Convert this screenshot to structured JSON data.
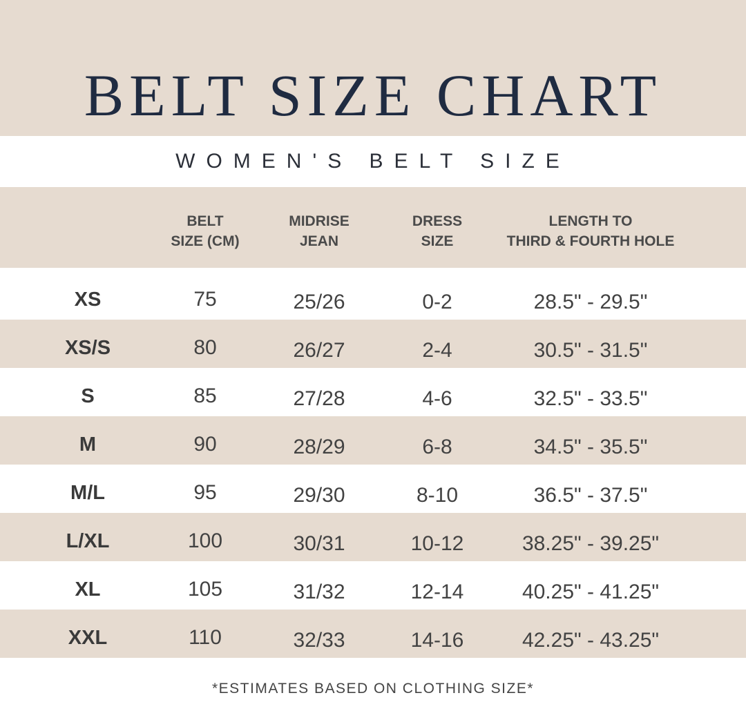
{
  "title": "BELT SIZE CHART",
  "subtitle": "WOMEN'S BELT SIZE",
  "colors": {
    "band": "#e6dbd0",
    "title": "#1f2b41",
    "text": "#424242"
  },
  "chart_data": {
    "type": "table",
    "columns": [
      {
        "line1": "",
        "line2": ""
      },
      {
        "line1": "BELT",
        "line2": "SIZE (CM)"
      },
      {
        "line1": "MIDRISE",
        "line2": "JEAN"
      },
      {
        "line1": "DRESS",
        "line2": "SIZE"
      },
      {
        "line1": "LENGTH TO",
        "line2": "THIRD & FOURTH HOLE"
      }
    ],
    "rows": [
      [
        "XS",
        "75",
        "25/26",
        "0-2",
        "28.5\" - 29.5\""
      ],
      [
        "XS/S",
        "80",
        "26/27",
        "2-4",
        "30.5\" - 31.5\""
      ],
      [
        "S",
        "85",
        "27/28",
        "4-6",
        "32.5\" - 33.5\""
      ],
      [
        "M",
        "90",
        "28/29",
        "6-8",
        "34.5\" - 35.5\""
      ],
      [
        "M/L",
        "95",
        "29/30",
        "8-10",
        "36.5\" - 37.5\""
      ],
      [
        "L/XL",
        "100",
        "30/31",
        "10-12",
        "38.25\" - 39.25\""
      ],
      [
        "XL",
        "105",
        "31/32",
        "12-14",
        "40.25\" - 41.25\""
      ],
      [
        "XXL",
        "110",
        "32/33",
        "14-16",
        "42.25\" - 43.25\""
      ]
    ]
  },
  "footnote": "*ESTIMATES BASED ON CLOTHING SIZE*"
}
